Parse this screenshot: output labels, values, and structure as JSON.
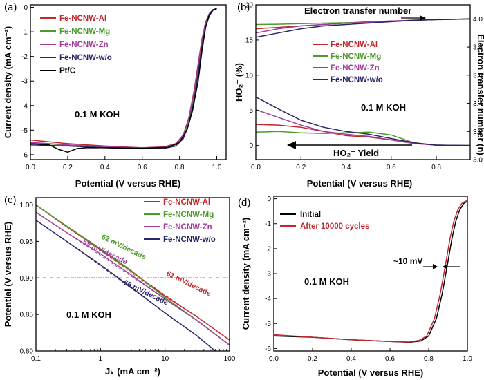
{
  "chart_data": [
    {
      "panel": "(a)",
      "type": "line",
      "xlabel": "Potential (V versus RHE)",
      "ylabel": "Current density (mA cm⁻²)",
      "xlim": [
        0.0,
        1.05
      ],
      "ylim": [
        -6.2,
        0.1
      ],
      "xticks": [
        0.0,
        0.2,
        0.4,
        0.6,
        0.8,
        1.0
      ],
      "xtick_labels": [
        "0.0",
        "0.2",
        "0.4",
        "0.6",
        "0.8",
        "1.0"
      ],
      "yticks": [
        0,
        -1,
        -2,
        -3,
        -4,
        -5,
        -6
      ],
      "ytick_labels": [
        "0",
        "-1",
        "-2",
        "-3",
        "-4",
        "-5",
        "-6"
      ],
      "annotation": "0.1 M KOH",
      "series": [
        {
          "name": "Fe-NCNW-Al",
          "color": "#c0272d",
          "x": [
            0.0,
            0.2,
            0.4,
            0.6,
            0.72,
            0.78,
            0.82,
            0.85,
            0.88,
            0.9,
            0.92,
            0.94,
            0.96,
            0.98,
            1.0
          ],
          "y": [
            -5.4,
            -5.55,
            -5.65,
            -5.72,
            -5.68,
            -5.55,
            -5.2,
            -4.5,
            -3.3,
            -2.3,
            -1.3,
            -0.6,
            -0.25,
            -0.1,
            -0.05
          ]
        },
        {
          "name": "Fe-NCNW-Mg",
          "color": "#4d9a2a",
          "x": [
            0.0,
            0.2,
            0.4,
            0.6,
            0.72,
            0.78,
            0.82,
            0.85,
            0.88,
            0.9,
            0.92,
            0.94,
            0.96,
            0.98,
            1.0
          ],
          "y": [
            -5.5,
            -5.62,
            -5.7,
            -5.75,
            -5.72,
            -5.6,
            -5.25,
            -4.6,
            -3.5,
            -2.5,
            -1.4,
            -0.65,
            -0.28,
            -0.1,
            -0.05
          ]
        },
        {
          "name": "Fe-NCNW-Zn",
          "color": "#a23c9a",
          "x": [
            0.0,
            0.2,
            0.4,
            0.6,
            0.72,
            0.78,
            0.82,
            0.85,
            0.88,
            0.9,
            0.92,
            0.94,
            0.96,
            0.98,
            1.0
          ],
          "y": [
            -5.5,
            -5.6,
            -5.68,
            -5.72,
            -5.7,
            -5.58,
            -5.22,
            -4.5,
            -3.4,
            -2.4,
            -1.35,
            -0.6,
            -0.25,
            -0.1,
            -0.05
          ]
        },
        {
          "name": "Fe-NCNW-w/o",
          "color": "#2a2466",
          "x": [
            0.0,
            0.2,
            0.4,
            0.6,
            0.72,
            0.78,
            0.82,
            0.85,
            0.88,
            0.9,
            0.92,
            0.94,
            0.96,
            0.98,
            1.0
          ],
          "y": [
            -5.6,
            -5.65,
            -5.72,
            -5.76,
            -5.74,
            -5.65,
            -5.35,
            -4.75,
            -3.7,
            -2.7,
            -1.6,
            -0.8,
            -0.35,
            -0.12,
            -0.05
          ]
        },
        {
          "name": "Pt/C",
          "color": "#000000",
          "x": [
            0.0,
            0.1,
            0.15,
            0.2,
            0.25,
            0.3,
            0.4,
            0.6,
            0.74,
            0.8,
            0.84,
            0.87,
            0.9,
            0.92,
            0.94,
            0.96,
            0.98,
            1.0
          ],
          "y": [
            -5.55,
            -5.6,
            -5.78,
            -5.9,
            -5.75,
            -5.72,
            -5.72,
            -5.74,
            -5.7,
            -5.5,
            -5.0,
            -4.2,
            -3.0,
            -1.8,
            -0.8,
            -0.3,
            -0.1,
            -0.05
          ]
        }
      ]
    },
    {
      "panel": "(b)",
      "type": "line",
      "xlabel": "Potential (V versus RHE)",
      "ylabel": "HO₂⁻ (%)",
      "ylabel_right": "Electron transfer number (n)",
      "xlim": [
        0.0,
        0.95
      ],
      "ylim": [
        -2,
        20
      ],
      "ylim_right": [
        3.0,
        4.1
      ],
      "xticks": [
        0.0,
        0.2,
        0.4,
        0.6,
        0.8
      ],
      "xtick_labels": [
        "0.0",
        "0.2",
        "0.4",
        "0.6",
        "0.8"
      ],
      "yticks": [
        0,
        5,
        10,
        15,
        20
      ],
      "ytick_labels": [
        "0",
        "5",
        "10",
        "15",
        "20"
      ],
      "yticks_right": [
        3.0,
        3.2,
        3.4,
        3.6,
        3.8,
        4.0
      ],
      "ytick_labels_right": [
        "3.0",
        "3.2",
        "3.4",
        "3.6",
        "3.8",
        "4.0"
      ],
      "annotation": "0.1 M KOH",
      "arrow_label_top": "Electron transfer number",
      "arrow_label_bottom": "HO₂⁻ Yield",
      "series": [
        {
          "name": "Fe-NCNW-Al",
          "color": "#c0272d",
          "x": [
            0.0,
            0.1,
            0.2,
            0.3,
            0.4,
            0.5,
            0.6,
            0.7,
            0.8,
            0.95
          ],
          "y": [
            3.0,
            2.9,
            2.6,
            2.0,
            1.4,
            1.2,
            0.8,
            0.3,
            0.05,
            0.0
          ],
          "n": [
            3.93,
            3.94,
            3.95,
            3.96,
            3.97,
            3.98,
            3.985,
            3.99,
            3.995,
            4.0
          ]
        },
        {
          "name": "Fe-NCNW-Mg",
          "color": "#4d9a2a",
          "x": [
            0.0,
            0.1,
            0.2,
            0.3,
            0.4,
            0.5,
            0.6,
            0.7,
            0.8,
            0.95
          ],
          "y": [
            1.9,
            2.0,
            1.8,
            1.7,
            1.8,
            1.9,
            1.5,
            0.4,
            0.05,
            0.0
          ],
          "n": [
            3.96,
            3.962,
            3.966,
            3.97,
            3.973,
            3.976,
            3.983,
            3.992,
            3.996,
            4.0
          ]
        },
        {
          "name": "Fe-NCNW-Zn",
          "color": "#a23c9a",
          "x": [
            0.0,
            0.1,
            0.2,
            0.3,
            0.4,
            0.5,
            0.6,
            0.7,
            0.8,
            0.95
          ],
          "y": [
            5.1,
            4.0,
            2.9,
            2.0,
            1.6,
            1.3,
            0.8,
            0.3,
            0.05,
            0.0
          ],
          "n": [
            3.9,
            3.93,
            3.95,
            3.96,
            3.97,
            3.975,
            3.985,
            3.99,
            3.995,
            4.0
          ]
        },
        {
          "name": "Fe-NCNW-w/o",
          "color": "#2a2466",
          "x": [
            0.0,
            0.1,
            0.2,
            0.3,
            0.4,
            0.5,
            0.6,
            0.7,
            0.8,
            0.95
          ],
          "y": [
            6.9,
            5.2,
            3.6,
            2.6,
            2.0,
            1.6,
            1.0,
            0.4,
            0.05,
            0.0
          ],
          "n": [
            3.87,
            3.9,
            3.93,
            3.95,
            3.96,
            3.97,
            3.98,
            3.99,
            3.995,
            4.0
          ]
        }
      ]
    },
    {
      "panel": "(c)",
      "type": "line",
      "xlabel": "Jₖ (mA cm⁻²)",
      "ylabel": "Potential (V versus RHE)",
      "xscale": "log",
      "xlim": [
        0.1,
        100
      ],
      "ylim": [
        0.8,
        1.01
      ],
      "xticks": [
        0.1,
        1,
        10,
        100
      ],
      "xtick_labels": [
        "0.1",
        "1",
        "10",
        "100"
      ],
      "yticks": [
        0.8,
        0.85,
        0.9,
        0.95,
        1.0
      ],
      "ytick_labels": [
        "0.80",
        "0.85",
        "0.90",
        "0.95",
        "1.00"
      ],
      "reference_line_y": 0.9,
      "annotation": "0.1 M KOH",
      "slope_labels": [
        {
          "text": "62 mV/decade",
          "color": "#4d9a2a"
        },
        {
          "text": "59 mV/decade",
          "color": "#a23c9a"
        },
        {
          "text": "61 mV/decade",
          "color": "#c0272d"
        },
        {
          "text": "66 mV/decade",
          "color": "#2a2466"
        }
      ],
      "series": [
        {
          "name": "Fe-NCNW-Al",
          "color": "#c0272d",
          "x": [
            0.1,
            0.3,
            1,
            3,
            10,
            30,
            100
          ],
          "y": [
            1.0,
            0.97,
            0.939,
            0.909,
            0.875,
            0.848,
            0.815
          ]
        },
        {
          "name": "Fe-NCNW-Mg",
          "color": "#4d9a2a",
          "x": [
            0.1,
            0.3,
            1,
            3,
            10,
            30,
            100
          ],
          "y": [
            1.0,
            0.971,
            0.94,
            0.91,
            0.873,
            0.843,
            0.808
          ]
        },
        {
          "name": "Fe-NCNW-Zn",
          "color": "#a23c9a",
          "x": [
            0.1,
            0.3,
            1,
            3,
            10,
            30,
            100
          ],
          "y": [
            0.99,
            0.962,
            0.933,
            0.904,
            0.871,
            0.843,
            0.808
          ]
        },
        {
          "name": "Fe-NCNW-w/o",
          "color": "#2a2466",
          "x": [
            0.1,
            0.3,
            1,
            3,
            10,
            30,
            60
          ],
          "y": [
            0.979,
            0.95,
            0.918,
            0.887,
            0.852,
            0.822,
            0.8
          ]
        }
      ]
    },
    {
      "panel": "(d)",
      "type": "line",
      "xlabel": "Potential (V versus RHE)",
      "ylabel": "Current density (mA cm⁻²)",
      "xlim": [
        0.0,
        1.0
      ],
      "ylim": [
        -6.1,
        0.1
      ],
      "xticks": [
        0.0,
        0.2,
        0.4,
        0.6,
        0.8,
        1.0
      ],
      "xtick_labels": [
        "0.0",
        "0.2",
        "0.4",
        "0.6",
        "0.8",
        "1.0"
      ],
      "yticks": [
        0,
        -1,
        -2,
        -3,
        -4,
        -5,
        -6
      ],
      "ytick_labels": [
        "0",
        "-1",
        "-2",
        "-3",
        "-4",
        "-5",
        "-6"
      ],
      "annotation": "0.1 M KOH",
      "shift_label": "~10 mV",
      "series": [
        {
          "name": "Initial",
          "color": "#000000",
          "x": [
            0.0,
            0.2,
            0.4,
            0.6,
            0.7,
            0.76,
            0.8,
            0.84,
            0.87,
            0.9,
            0.92,
            0.94,
            0.96,
            0.98,
            1.0
          ],
          "y": [
            -5.5,
            -5.55,
            -5.65,
            -5.72,
            -5.75,
            -5.7,
            -5.5,
            -4.8,
            -3.8,
            -2.5,
            -1.6,
            -0.9,
            -0.45,
            -0.2,
            -0.1
          ]
        },
        {
          "name": "After 10000 cycles",
          "color": "#c0272d",
          "x": [
            0.0,
            0.2,
            0.4,
            0.6,
            0.7,
            0.75,
            0.79,
            0.83,
            0.86,
            0.89,
            0.91,
            0.93,
            0.95,
            0.97,
            0.99,
            1.0
          ],
          "y": [
            -5.45,
            -5.55,
            -5.65,
            -5.72,
            -5.74,
            -5.68,
            -5.5,
            -4.8,
            -3.8,
            -2.5,
            -1.6,
            -0.9,
            -0.45,
            -0.2,
            -0.1,
            -0.08
          ]
        }
      ]
    }
  ]
}
